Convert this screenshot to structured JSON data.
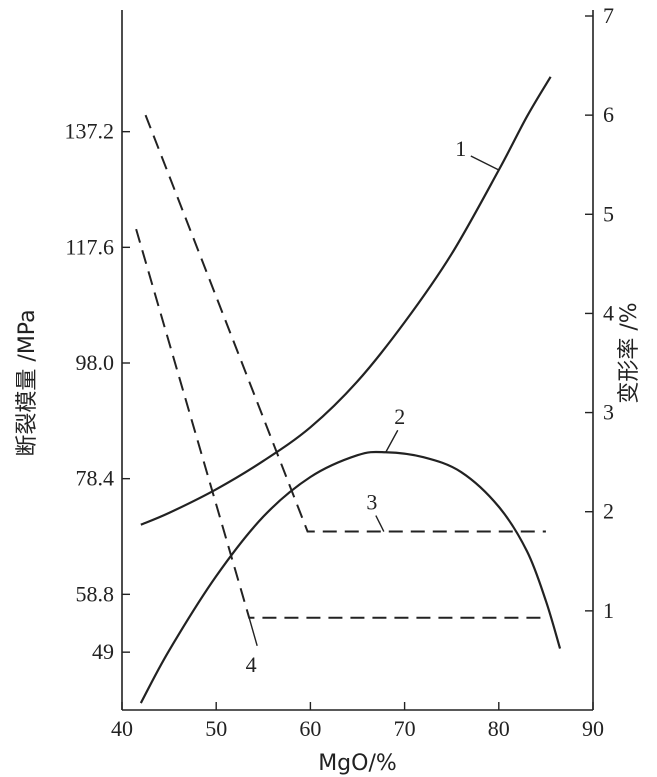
{
  "chart_data": {
    "type": "line",
    "xlabel": "MgO/%",
    "ylabel_left": "断裂模量 /MPa",
    "ylabel_right": "变形率 /%",
    "xlim": [
      40,
      90
    ],
    "ylim_left": [
      39.2,
      156.8
    ],
    "ylim_right": [
      0,
      7
    ],
    "x_ticks": [
      40,
      50,
      60,
      70,
      80,
      90
    ],
    "y_left_ticks": [
      49,
      58.8,
      78.4,
      98.0,
      117.6,
      137.2
    ],
    "y_left_tick_labels": [
      "49",
      "58.8",
      "78.4",
      "98.0",
      "117.6",
      "137.2"
    ],
    "y_right_ticks": [
      1,
      2,
      3,
      4,
      5,
      6,
      7
    ],
    "grid": false,
    "series": [
      {
        "name": "1",
        "axis": "left",
        "style": "solid",
        "x": [
          42,
          45,
          50,
          55,
          60,
          65,
          70,
          75,
          80,
          83,
          85.5
        ],
        "y": [
          70.6,
          72.6,
          76.6,
          81.4,
          87.1,
          94.9,
          104.9,
          116.5,
          130.7,
          139.8,
          146.5
        ]
      },
      {
        "name": "2",
        "axis": "right",
        "style": "solid",
        "x": [
          42,
          45,
          50,
          55,
          60,
          65,
          68,
          72,
          76,
          80,
          83,
          85,
          86.5
        ],
        "y": [
          0.07,
          0.6,
          1.35,
          1.95,
          2.35,
          2.57,
          2.6,
          2.55,
          2.4,
          2.05,
          1.6,
          1.1,
          0.62
        ]
      },
      {
        "name": "3",
        "axis": "right",
        "style": "dashed",
        "x": [
          42.5,
          59.7,
          85
        ],
        "y": [
          6.0,
          1.8,
          1.8
        ]
      },
      {
        "name": "4",
        "axis": "right",
        "style": "dashed",
        "x": [
          41.5,
          53.5,
          85
        ],
        "y": [
          4.85,
          0.93,
          0.93
        ]
      }
    ]
  }
}
